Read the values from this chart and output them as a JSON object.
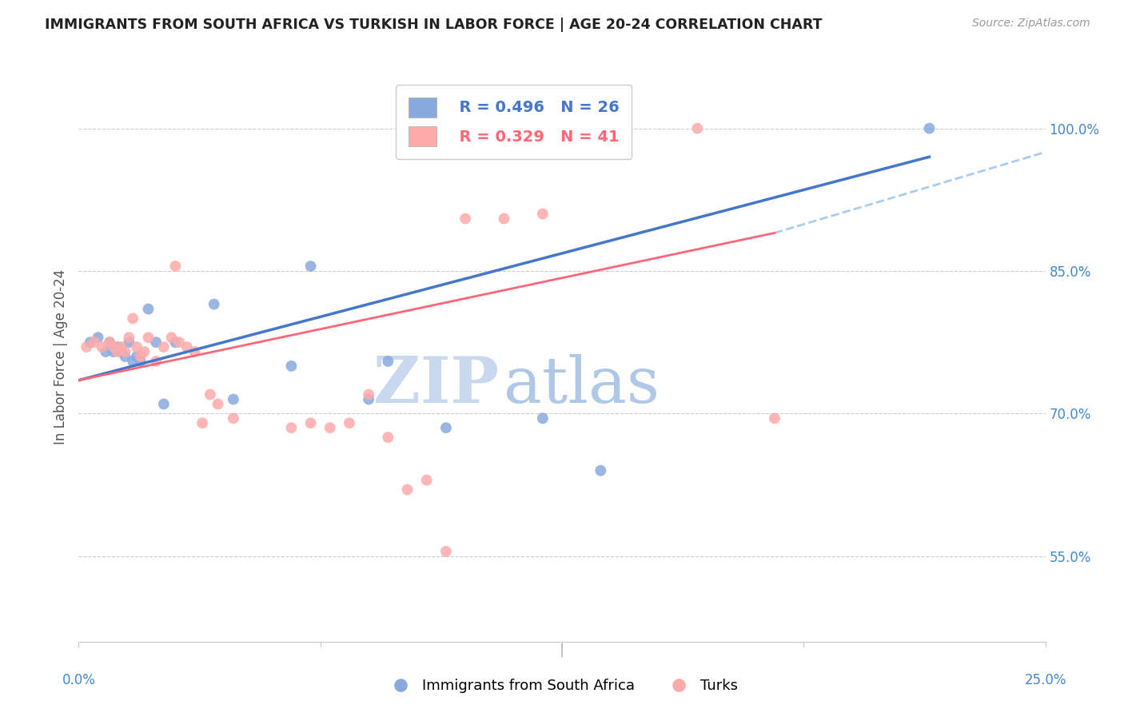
{
  "title": "IMMIGRANTS FROM SOUTH AFRICA VS TURKISH IN LABOR FORCE | AGE 20-24 CORRELATION CHART",
  "source": "Source: ZipAtlas.com",
  "xlabel_bottom_left": "0.0%",
  "xlabel_bottom_right": "25.0%",
  "ylabel": "In Labor Force | Age 20-24",
  "ytick_labels": [
    "55.0%",
    "70.0%",
    "85.0%",
    "100.0%"
  ],
  "ytick_values": [
    55.0,
    70.0,
    85.0,
    100.0
  ],
  "xlim": [
    0.0,
    25.0
  ],
  "ylim": [
    46.0,
    106.0
  ],
  "blue_color": "#88aadd",
  "pink_color": "#ffaaaa",
  "blue_line_color": "#4477cc",
  "pink_line_color": "#ff6677",
  "dashed_line_color": "#aaccee",
  "legend_blue_r": "R = 0.496",
  "legend_blue_n": "N = 26",
  "legend_pink_r": "R = 0.329",
  "legend_pink_n": "N = 41",
  "legend_label_blue": "Immigrants from South Africa",
  "legend_label_pink": "Turks",
  "watermark_zip": "ZIP",
  "watermark_atlas": "atlas",
  "title_color": "#222222",
  "axis_label_color": "#4488cc",
  "blue_scatter_x": [
    0.3,
    0.5,
    0.7,
    0.8,
    0.9,
    1.0,
    1.1,
    1.2,
    1.3,
    1.4,
    1.5,
    1.6,
    1.8,
    2.0,
    2.2,
    2.5,
    3.5,
    4.0,
    5.5,
    6.0,
    7.5,
    8.0,
    9.5,
    12.0,
    13.5,
    22.0
  ],
  "blue_scatter_y": [
    77.5,
    78.0,
    76.5,
    77.5,
    76.5,
    77.0,
    76.5,
    76.0,
    77.5,
    75.5,
    76.0,
    75.5,
    81.0,
    77.5,
    71.0,
    77.5,
    81.5,
    71.5,
    75.0,
    85.5,
    71.5,
    75.5,
    68.5,
    69.5,
    64.0,
    100.0
  ],
  "pink_scatter_x": [
    0.2,
    0.4,
    0.6,
    0.8,
    0.9,
    1.0,
    1.1,
    1.2,
    1.3,
    1.4,
    1.5,
    1.6,
    1.7,
    1.8,
    2.0,
    2.2,
    2.4,
    2.5,
    2.6,
    2.8,
    3.0,
    3.2,
    3.4,
    3.6,
    4.0,
    5.5,
    6.0,
    6.5,
    7.0,
    7.5,
    8.0,
    8.5,
    9.0,
    9.5,
    10.0,
    11.0,
    12.0,
    13.0,
    14.0,
    16.0,
    18.0
  ],
  "pink_scatter_y": [
    77.0,
    77.5,
    77.0,
    77.5,
    77.0,
    76.5,
    77.0,
    76.5,
    78.0,
    80.0,
    77.0,
    76.0,
    76.5,
    78.0,
    75.5,
    77.0,
    78.0,
    85.5,
    77.5,
    77.0,
    76.5,
    69.0,
    72.0,
    71.0,
    69.5,
    68.5,
    69.0,
    68.5,
    69.0,
    72.0,
    67.5,
    62.0,
    63.0,
    55.5,
    90.5,
    90.5,
    91.0,
    100.0,
    100.0,
    100.0,
    69.5
  ],
  "blue_line_x": [
    0.0,
    22.0
  ],
  "blue_line_y": [
    73.5,
    97.0
  ],
  "pink_line_x": [
    0.0,
    18.0
  ],
  "pink_line_y": [
    73.5,
    89.0
  ],
  "dashed_line_x": [
    18.0,
    25.0
  ],
  "dashed_line_y": [
    89.0,
    97.5
  ],
  "marker_size": 100
}
